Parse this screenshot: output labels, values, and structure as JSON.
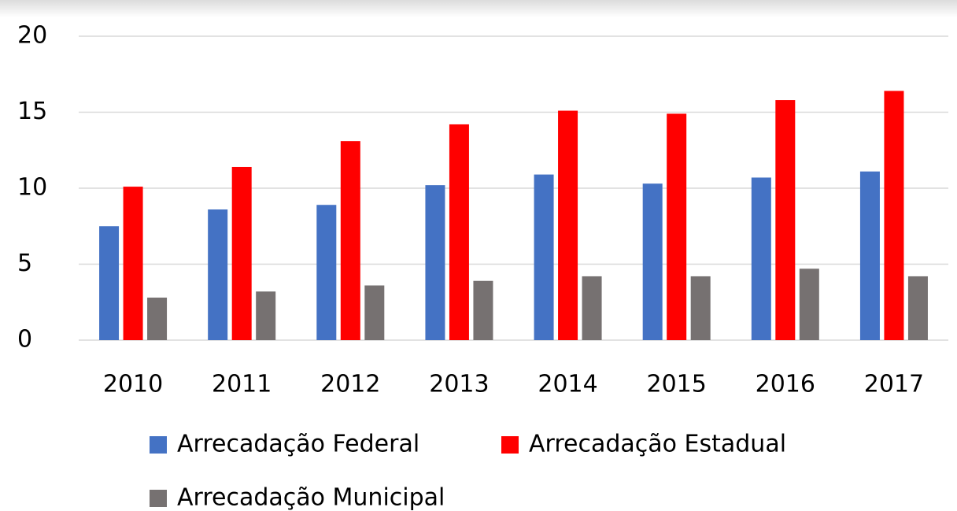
{
  "chart_data": {
    "type": "bar",
    "categories": [
      "2010",
      "2011",
      "2012",
      "2013",
      "2014",
      "2015",
      "2016",
      "2017"
    ],
    "series": [
      {
        "name": "Arrecadação Federal",
        "color": "#4472c4",
        "values": [
          7.5,
          8.6,
          8.9,
          10.2,
          10.9,
          10.3,
          10.7,
          11.1
        ]
      },
      {
        "name": "Arrecadação Estadual",
        "color": "#ff0000",
        "values": [
          10.1,
          11.4,
          13.1,
          14.2,
          15.1,
          14.9,
          15.8,
          16.4
        ]
      },
      {
        "name": "Arrecadação Municipal",
        "color": "#767171",
        "values": [
          2.8,
          3.2,
          3.6,
          3.9,
          4.2,
          4.2,
          4.7,
          4.2
        ]
      }
    ],
    "ylim": [
      0,
      20
    ],
    "yticks": [
      0,
      5,
      10,
      15,
      20
    ],
    "grid": true,
    "legend": "bottom"
  }
}
